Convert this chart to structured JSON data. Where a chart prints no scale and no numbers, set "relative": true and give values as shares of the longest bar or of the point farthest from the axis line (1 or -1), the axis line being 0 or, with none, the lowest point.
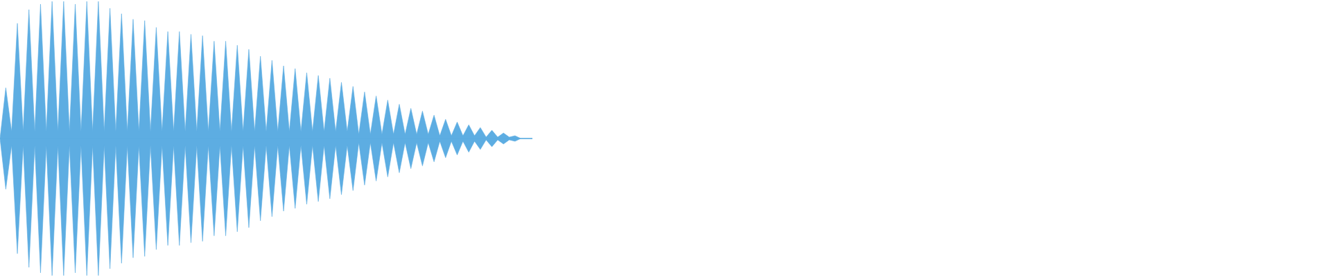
{
  "chart_data": {
    "type": "area",
    "relative": true,
    "categories": [
      null,
      null,
      null,
      null,
      null,
      null,
      null,
      null,
      null,
      null,
      null,
      null,
      null,
      null,
      null,
      null,
      null,
      null,
      null,
      null,
      null,
      null,
      null,
      null,
      null,
      null,
      null,
      null,
      null,
      null,
      null,
      null,
      null,
      null,
      null,
      null,
      null,
      null,
      null,
      null,
      null,
      null,
      null,
      null,
      null,
      null,
      null,
      null,
      null,
      null,
      null,
      null,
      null,
      null,
      null,
      null,
      null,
      null,
      null,
      null,
      null,
      null,
      null,
      null,
      null,
      null,
      null,
      null,
      null,
      null,
      null,
      null,
      null,
      null,
      null,
      null,
      null,
      null,
      null,
      null,
      null,
      null,
      null,
      null,
      null,
      null,
      null,
      null,
      null,
      null,
      null,
      null,
      null
    ],
    "series": [
      {
        "color": "#5dade2",
        "values": [
          0,
          0.37,
          0.05,
          0.84,
          0.05,
          0.94,
          0.05,
          0.98,
          0.05,
          1,
          0.05,
          1,
          0.05,
          0.98,
          0.05,
          1,
          0.05,
          1,
          0.05,
          0.95,
          0.05,
          0.91,
          0.05,
          0.87,
          0.05,
          0.86,
          0.05,
          0.81,
          0.05,
          0.78,
          0.05,
          0.78,
          0.05,
          0.76,
          0.05,
          0.75,
          0.05,
          0.71,
          0.05,
          0.71,
          0.05,
          0.68,
          0.05,
          0.65,
          0.05,
          0.6,
          0.05,
          0.57,
          0.05,
          0.53,
          0.05,
          0.51,
          0.05,
          0.48,
          0.05,
          0.46,
          0.05,
          0.44,
          0.05,
          0.41,
          0.05,
          0.38,
          0.03,
          0.34,
          0.03,
          0.31,
          0.03,
          0.28,
          0.03,
          0.25,
          0.03,
          0.22,
          0.03,
          0.2,
          0.03,
          0.17,
          0.02,
          0.14,
          0.02,
          0.12,
          0.02,
          0.1,
          0.02,
          0.08,
          0.01,
          0.06,
          0.01,
          0.04,
          0.01,
          0.02,
          0,
          0,
          0
        ]
      },
      {
        "color": "#5dade2",
        "values": [
          0,
          -0.37,
          -0.05,
          -0.84,
          -0.05,
          -0.94,
          -0.05,
          -0.98,
          -0.05,
          -1,
          -0.05,
          -1,
          -0.05,
          -0.98,
          -0.05,
          -1,
          -0.05,
          -1,
          -0.05,
          -0.95,
          -0.05,
          -0.91,
          -0.05,
          -0.87,
          -0.05,
          -0.86,
          -0.05,
          -0.81,
          -0.05,
          -0.78,
          -0.05,
          -0.78,
          -0.05,
          -0.76,
          -0.05,
          -0.75,
          -0.05,
          -0.71,
          -0.05,
          -0.71,
          -0.05,
          -0.68,
          -0.05,
          -0.65,
          -0.05,
          -0.6,
          -0.05,
          -0.57,
          -0.05,
          -0.53,
          -0.05,
          -0.51,
          -0.05,
          -0.48,
          -0.05,
          -0.46,
          -0.05,
          -0.44,
          -0.05,
          -0.41,
          -0.05,
          -0.38,
          -0.03,
          -0.34,
          -0.03,
          -0.31,
          -0.03,
          -0.28,
          -0.03,
          -0.25,
          -0.03,
          -0.22,
          -0.03,
          -0.2,
          -0.03,
          -0.17,
          -0.02,
          -0.14,
          -0.02,
          -0.12,
          -0.02,
          -0.1,
          -0.02,
          -0.08,
          -0.01,
          -0.06,
          -0.01,
          -0.04,
          -0.01,
          -0.02,
          0,
          0,
          0
        ]
      }
    ]
  }
}
